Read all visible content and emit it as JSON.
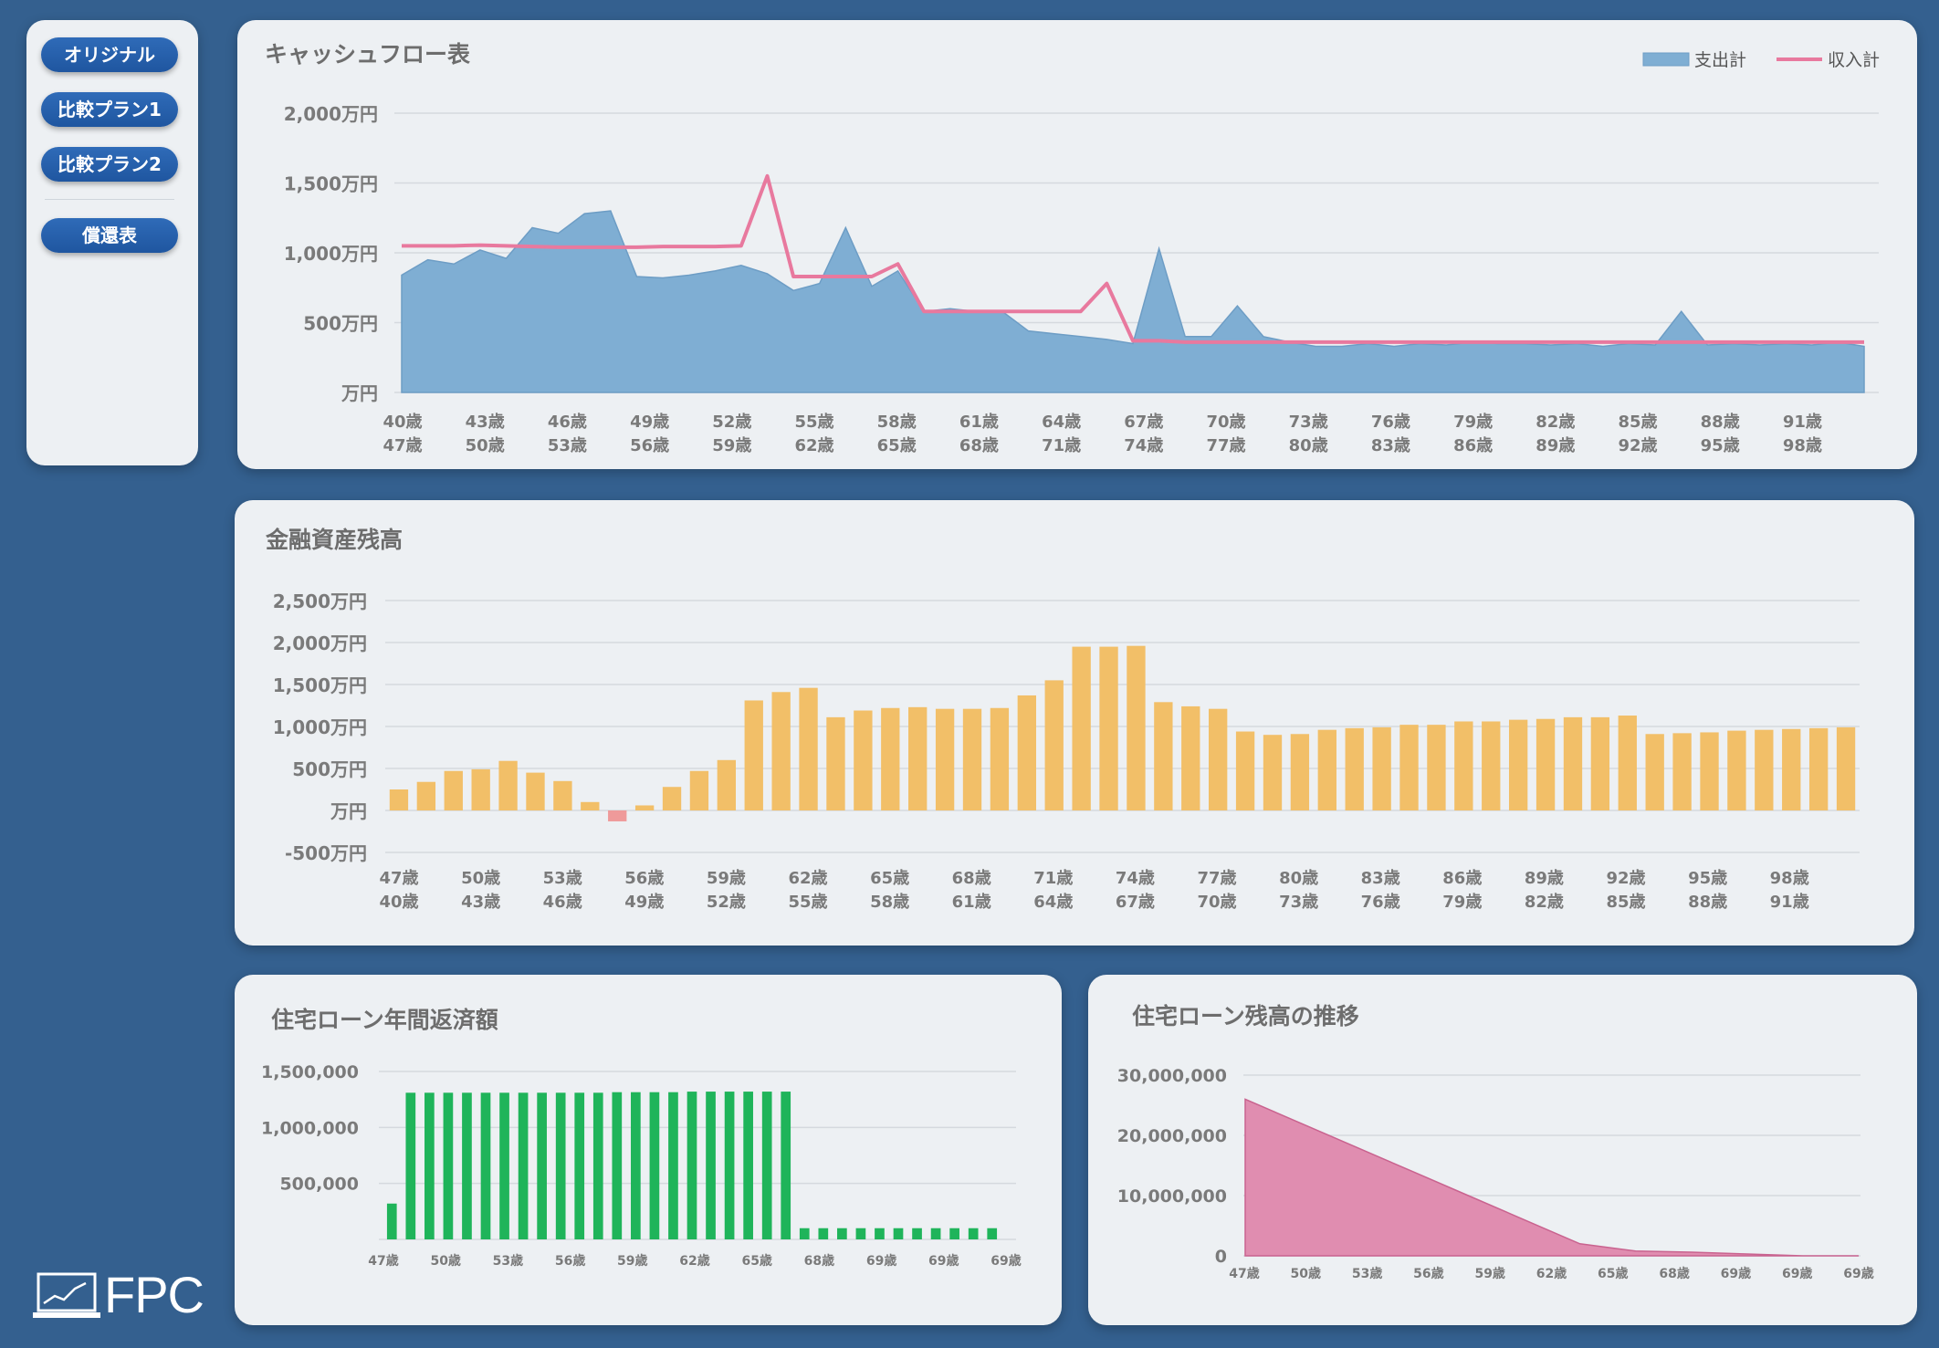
{
  "nav": {
    "items": [
      {
        "label": "オリジナル"
      },
      {
        "label": "比較プラン1"
      },
      {
        "label": "比較プラン2"
      },
      {
        "label": "償還表"
      }
    ]
  },
  "logo": {
    "text": "FPC"
  },
  "colors": {
    "expense": "#7faed3",
    "income": "#e8799e",
    "asset": "#f2bf68",
    "asset_neg": "#ef9a9a",
    "repay": "#1fb45a",
    "balance": "#e08db0"
  },
  "chart_data": [
    {
      "id": "cashflow",
      "type": "area",
      "title": "キャッシュフロー表",
      "unit": "万円",
      "ylim": [
        0,
        2000
      ],
      "yticks": [
        0,
        500,
        1000,
        1500,
        2000
      ],
      "ytick_labels": [
        "万円",
        "500万円",
        "1,000万円",
        "1,500万円",
        "2,000万円"
      ],
      "xlabels_row1": [
        "40歳",
        "43歳",
        "46歳",
        "49歳",
        "52歳",
        "55歳",
        "58歳",
        "61歳",
        "64歳",
        "67歳",
        "70歳",
        "73歳",
        "76歳",
        "79歳",
        "82歳",
        "85歳",
        "88歳",
        "91歳"
      ],
      "xlabels_row2": [
        "47歳",
        "50歳",
        "53歳",
        "56歳",
        "59歳",
        "62歳",
        "65歳",
        "68歳",
        "71歳",
        "74歳",
        "77歳",
        "80歳",
        "83歳",
        "86歳",
        "89歳",
        "92歳",
        "95歳",
        "98歳"
      ],
      "legend": {
        "position": "top-right"
      },
      "series": [
        {
          "name": "支出計",
          "kind": "area",
          "values": [
            840,
            950,
            920,
            1020,
            960,
            1180,
            1140,
            1280,
            1300,
            830,
            820,
            840,
            870,
            910,
            850,
            730,
            780,
            1180,
            760,
            870,
            580,
            600,
            580,
            580,
            440,
            420,
            400,
            380,
            350,
            1030,
            400,
            400,
            620,
            400,
            360,
            330,
            330,
            350,
            330,
            350,
            340,
            360,
            350,
            350,
            340,
            350,
            330,
            350,
            340,
            580,
            340,
            350,
            340,
            350,
            340,
            360,
            330
          ]
        },
        {
          "name": "支出計_edge",
          "kind": "hidden",
          "values": []
        },
        {
          "name": "収入計",
          "kind": "line",
          "values": [
            1050,
            1050,
            1050,
            1055,
            1050,
            1045,
            1040,
            1040,
            1040,
            1040,
            1045,
            1045,
            1045,
            1050,
            1550,
            830,
            830,
            830,
            830,
            920,
            580,
            580,
            580,
            580,
            580,
            580,
            580,
            780,
            370,
            370,
            360,
            360,
            360,
            360,
            360,
            360,
            360,
            360,
            360,
            360,
            360,
            360,
            360,
            360,
            360,
            360,
            360,
            360,
            360,
            360,
            360,
            360,
            360,
            360,
            360,
            360,
            360
          ]
        }
      ]
    },
    {
      "id": "assets",
      "type": "bar",
      "title": "金融資産残高",
      "unit": "万円",
      "ylim": [
        -500,
        2500
      ],
      "yticks": [
        -500,
        0,
        500,
        1000,
        1500,
        2000,
        2500
      ],
      "ytick_labels": [
        "-500万円",
        "万円",
        "500万円",
        "1,000万円",
        "1,500万円",
        "2,000万円",
        "2,500万円"
      ],
      "xlabels_row1": [
        "47歳",
        "50歳",
        "53歳",
        "56歳",
        "59歳",
        "62歳",
        "65歳",
        "68歳",
        "71歳",
        "74歳",
        "77歳",
        "80歳",
        "83歳",
        "86歳",
        "89歳",
        "92歳",
        "95歳",
        "98歳"
      ],
      "xlabels_row2": [
        "40歳",
        "43歳",
        "46歳",
        "49歳",
        "52歳",
        "55歳",
        "58歳",
        "61歳",
        "64歳",
        "67歳",
        "70歳",
        "73歳",
        "76歳",
        "79歳",
        "82歳",
        "85歳",
        "88歳",
        "91歳"
      ],
      "values": [
        250,
        340,
        470,
        490,
        590,
        450,
        350,
        100,
        -130,
        60,
        280,
        470,
        600,
        1310,
        1410,
        1460,
        1110,
        1190,
        1220,
        1230,
        1210,
        1210,
        1220,
        1370,
        1550,
        1950,
        1950,
        1960,
        1290,
        1240,
        1210,
        940,
        900,
        910,
        960,
        980,
        990,
        1020,
        1020,
        1060,
        1060,
        1080,
        1090,
        1110,
        1110,
        1130,
        910,
        920,
        930,
        950,
        960,
        970,
        980,
        990
      ]
    },
    {
      "id": "repay",
      "type": "bar",
      "title": "住宅ローン年間返済額",
      "ylim": [
        0,
        1500000
      ],
      "yticks": [
        500000,
        1000000,
        1500000
      ],
      "ytick_labels": [
        "500,000",
        "1,000,000",
        "1,500,000"
      ],
      "xlabels": [
        "47歳",
        "50歳",
        "53歳",
        "56歳",
        "59歳",
        "62歳",
        "65歳",
        "68歳",
        "69歳",
        "69歳",
        "69歳"
      ],
      "values": [
        320000,
        1310000,
        1310000,
        1310000,
        1310000,
        1310000,
        1310000,
        1310000,
        1310000,
        1310000,
        1310000,
        1310000,
        1315000,
        1315000,
        1315000,
        1315000,
        1320000,
        1320000,
        1320000,
        1320000,
        1320000,
        1320000,
        100000,
        100000,
        100000,
        100000,
        100000,
        100000,
        100000,
        100000,
        100000,
        100000,
        100000
      ]
    },
    {
      "id": "balance",
      "type": "area",
      "title": "住宅ローン残高の推移",
      "ylim": [
        0,
        30000000
      ],
      "yticks": [
        0,
        10000000,
        20000000,
        30000000
      ],
      "ytick_labels": [
        "0",
        "10,000,000",
        "20,000,000",
        "30,000,000"
      ],
      "xlabels": [
        "47歳",
        "50歳",
        "53歳",
        "56歳",
        "59歳",
        "62歳",
        "65歳",
        "68歳",
        "69歳",
        "69歳",
        "69歳"
      ],
      "values": [
        26000000,
        22000000,
        18000000,
        14000000,
        10000000,
        6000000,
        2000000,
        800000,
        600000,
        300000,
        0,
        0
      ]
    }
  ]
}
